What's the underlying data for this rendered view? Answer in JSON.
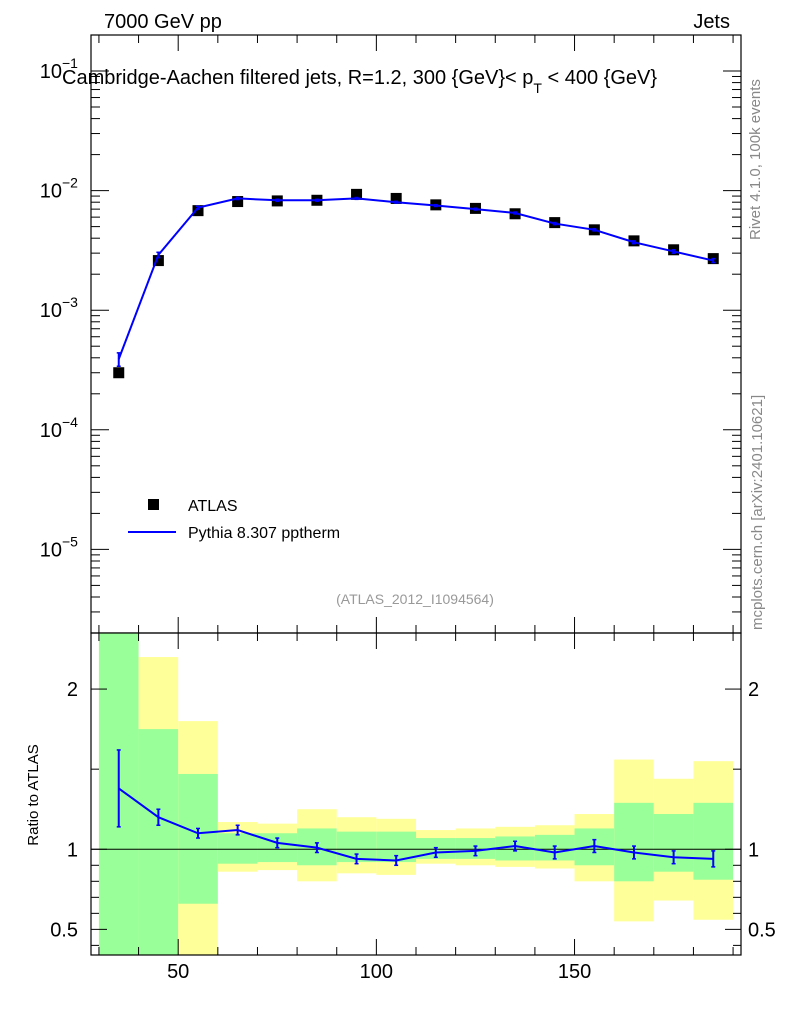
{
  "header": {
    "left": "7000 GeV pp",
    "right": "Jets"
  },
  "side_labels": {
    "rivet": "Rivet 4.1.0,  100k events",
    "mcplots": "mcplots.cern.ch [arXiv:2401.10621]"
  },
  "chart_data": [
    {
      "type": "scatter",
      "title": "Cambridge-Aachen filtered jets, R=1.2, 300 {GeV}< p_T < 400 {GeV}",
      "title_main": "Cambridge-Aachen filtered jets, R=1.2, 300 {GeV}< p",
      "title_sub": "T",
      "title_tail": " < 400 {GeV}",
      "watermark": "(ATLAS_2012_I1094564)",
      "yscale": "log",
      "xlim": [
        28,
        192
      ],
      "ylim": [
        2e-06,
        0.2
      ],
      "ytick_labels": [
        {
          "v": 0.1,
          "base": "10",
          "exp": "−1"
        },
        {
          "v": 0.01,
          "base": "10",
          "exp": "−2"
        },
        {
          "v": 0.001,
          "base": "10",
          "exp": "−3"
        },
        {
          "v": 0.0001,
          "base": "10",
          "exp": "−4"
        },
        {
          "v": 1e-05,
          "base": "10",
          "exp": "−5"
        }
      ],
      "legend": [
        {
          "label": "ATLAS",
          "marker": "square",
          "color": "#000000"
        },
        {
          "label": "Pythia 8.307 pptherm",
          "marker": "line",
          "color": "#0000ff"
        }
      ],
      "series": [
        {
          "name": "ATLAS",
          "color": "#000000",
          "x": [
            35,
            45,
            55,
            65,
            75,
            85,
            95,
            105,
            115,
            125,
            135,
            145,
            155,
            165,
            175,
            185
          ],
          "y": [
            0.0003,
            0.0026,
            0.0068,
            0.0081,
            0.0082,
            0.0083,
            0.0093,
            0.0086,
            0.0076,
            0.0071,
            0.0064,
            0.0054,
            0.0047,
            0.0038,
            0.0032,
            0.0027
          ]
        },
        {
          "name": "Pythia 8.307 pptherm",
          "color": "#0000ff",
          "x": [
            35,
            45,
            55,
            65,
            75,
            85,
            95,
            105,
            115,
            125,
            135,
            145,
            155,
            165,
            175,
            185
          ],
          "y": [
            0.00039,
            0.0029,
            0.0072,
            0.0086,
            0.0083,
            0.0083,
            0.0086,
            0.008,
            0.0075,
            0.007,
            0.0065,
            0.0053,
            0.0047,
            0.0037,
            0.0031,
            0.0026
          ],
          "err": [
            5e-05,
            0.00015,
            0.0002,
            0.00018,
            0.00016,
            0.00015,
            0.00015,
            0.00014,
            0.00013,
            0.00012,
            0.00012,
            0.00011,
            0.0001,
            0.0001,
            0.0001,
            0.0001
          ]
        }
      ]
    },
    {
      "type": "line",
      "ylabel": "Ratio to ATLAS",
      "xlim": [
        28,
        192
      ],
      "ylim": [
        0.34,
        2.35
      ],
      "xticks": [
        50,
        100,
        150
      ],
      "yticks": [
        0.5,
        1,
        2
      ],
      "ytick_labels": [
        "0.5",
        "1",
        "2"
      ],
      "reference_line": 1,
      "bins": [
        {
          "lo": 30,
          "hi": 40,
          "y_lo": 0.34,
          "y_hi": 2.35,
          "g_lo": 0.34,
          "g_hi": 2.35
        },
        {
          "lo": 40,
          "hi": 50,
          "y_lo": 0.34,
          "y_hi": 2.2,
          "g_lo": 0.34,
          "g_hi": 1.75
        },
        {
          "lo": 50,
          "hi": 60,
          "y_lo": 0.34,
          "y_hi": 1.8,
          "g_lo": 0.66,
          "g_hi": 1.47
        },
        {
          "lo": 60,
          "hi": 70,
          "y_lo": 0.86,
          "y_hi": 1.17,
          "g_lo": 0.91,
          "g_hi": 1.1
        },
        {
          "lo": 70,
          "hi": 80,
          "y_lo": 0.87,
          "y_hi": 1.16,
          "g_lo": 0.92,
          "g_hi": 1.1
        },
        {
          "lo": 80,
          "hi": 90,
          "y_lo": 0.8,
          "y_hi": 1.25,
          "g_lo": 0.9,
          "g_hi": 1.13
        },
        {
          "lo": 90,
          "hi": 100,
          "y_lo": 0.85,
          "y_hi": 1.2,
          "g_lo": 0.92,
          "g_hi": 1.11
        },
        {
          "lo": 100,
          "hi": 110,
          "y_lo": 0.84,
          "y_hi": 1.19,
          "g_lo": 0.92,
          "g_hi": 1.11
        },
        {
          "lo": 110,
          "hi": 120,
          "y_lo": 0.91,
          "y_hi": 1.12,
          "g_lo": 0.94,
          "g_hi": 1.07
        },
        {
          "lo": 120,
          "hi": 130,
          "y_lo": 0.9,
          "y_hi": 1.13,
          "g_lo": 0.94,
          "g_hi": 1.07
        },
        {
          "lo": 130,
          "hi": 140,
          "y_lo": 0.89,
          "y_hi": 1.14,
          "g_lo": 0.93,
          "g_hi": 1.08
        },
        {
          "lo": 140,
          "hi": 150,
          "y_lo": 0.88,
          "y_hi": 1.15,
          "g_lo": 0.93,
          "g_hi": 1.09
        },
        {
          "lo": 150,
          "hi": 160,
          "y_lo": 0.8,
          "y_hi": 1.22,
          "g_lo": 0.9,
          "g_hi": 1.13
        },
        {
          "lo": 160,
          "hi": 170,
          "y_lo": 0.55,
          "y_hi": 1.56,
          "g_lo": 0.8,
          "g_hi": 1.29
        },
        {
          "lo": 170,
          "hi": 180,
          "y_lo": 0.68,
          "y_hi": 1.44,
          "g_lo": 0.86,
          "g_hi": 1.22
        },
        {
          "lo": 180,
          "hi": 190,
          "y_lo": 0.56,
          "y_hi": 1.55,
          "g_lo": 0.81,
          "g_hi": 1.29
        }
      ],
      "series": [
        {
          "name": "Pythia 8.307 pptherm / ATLAS",
          "color": "#0000ff",
          "x": [
            35,
            45,
            55,
            65,
            75,
            85,
            95,
            105,
            115,
            125,
            135,
            145,
            155,
            165,
            175,
            185
          ],
          "y": [
            1.38,
            1.2,
            1.1,
            1.12,
            1.04,
            1.01,
            0.94,
            0.93,
            0.98,
            0.99,
            1.02,
            0.98,
            1.02,
            0.98,
            0.95,
            0.94
          ],
          "err": [
            0.24,
            0.05,
            0.03,
            0.03,
            0.03,
            0.03,
            0.03,
            0.03,
            0.03,
            0.03,
            0.03,
            0.04,
            0.04,
            0.04,
            0.04,
            0.05
          ]
        }
      ],
      "band_colors": {
        "outer": "#ffff99",
        "inner": "#99ff99"
      }
    }
  ]
}
